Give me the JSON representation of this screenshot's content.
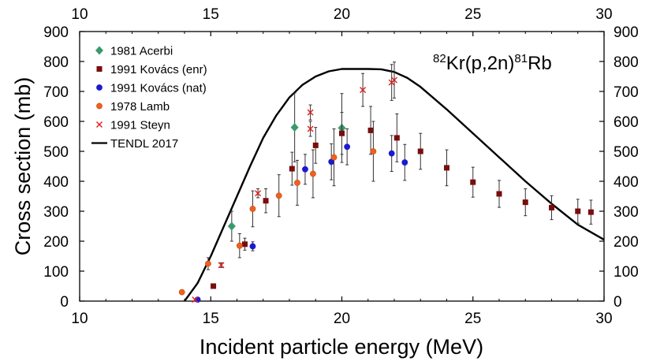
{
  "chart_data": {
    "type": "scatter",
    "title": "",
    "reaction": {
      "pre": "82",
      "main1": "Kr(p,2n)",
      "sup2": "81",
      "main2": "Rb"
    },
    "xlabel": "Incident particle energy (MeV)",
    "ylabel": "Cross section (mb)",
    "xlim": [
      10,
      30
    ],
    "ylim": [
      0,
      900
    ],
    "xticks": [
      10,
      15,
      20,
      25,
      30
    ],
    "yticks": [
      0,
      100,
      200,
      300,
      400,
      500,
      600,
      700,
      800,
      900
    ],
    "xtick_labels": [
      "10",
      "15",
      "20",
      "25",
      "30"
    ],
    "ytick_labels": [
      "0",
      "100",
      "200",
      "300",
      "400",
      "500",
      "600",
      "700",
      "800",
      "900"
    ],
    "grid": false,
    "legend_position": "top-left",
    "series": [
      {
        "name": "1981 Acerbi",
        "marker": "diamond",
        "color": "#3a9a6a",
        "points": [
          {
            "x": 15.8,
            "y": 250,
            "err": 50
          },
          {
            "x": 18.2,
            "y": 580,
            "err": 115
          },
          {
            "x": 20.0,
            "y": 578,
            "err": 115
          }
        ]
      },
      {
        "name": "1991 Kovács (enr)",
        "marker": "square",
        "color": "#7a0d0d",
        "points": [
          {
            "x": 15.1,
            "y": 50,
            "err": 0
          },
          {
            "x": 16.3,
            "y": 190,
            "err": 20
          },
          {
            "x": 17.1,
            "y": 335,
            "err": 40
          },
          {
            "x": 18.1,
            "y": 442,
            "err": 55
          },
          {
            "x": 19.0,
            "y": 520,
            "err": 60
          },
          {
            "x": 20.0,
            "y": 560,
            "err": 70
          },
          {
            "x": 21.1,
            "y": 570,
            "err": 80
          },
          {
            "x": 22.1,
            "y": 545,
            "err": 80
          },
          {
            "x": 23.0,
            "y": 500,
            "err": 60
          },
          {
            "x": 24.0,
            "y": 445,
            "err": 60
          },
          {
            "x": 25.0,
            "y": 397,
            "err": 50
          },
          {
            "x": 26.0,
            "y": 358,
            "err": 45
          },
          {
            "x": 27.0,
            "y": 330,
            "err": 45
          },
          {
            "x": 28.0,
            "y": 312,
            "err": 40
          },
          {
            "x": 29.0,
            "y": 300,
            "err": 40
          },
          {
            "x": 29.5,
            "y": 297,
            "err": 40
          }
        ]
      },
      {
        "name": "1991 Kovács (nat)",
        "marker": "circle",
        "color": "#1a1ad0",
        "points": [
          {
            "x": 14.5,
            "y": 5,
            "err": 0
          },
          {
            "x": 16.6,
            "y": 183,
            "err": 15
          },
          {
            "x": 18.6,
            "y": 440,
            "err": 50
          },
          {
            "x": 19.6,
            "y": 465,
            "err": 60
          },
          {
            "x": 20.2,
            "y": 515,
            "err": 60
          },
          {
            "x": 21.9,
            "y": 493,
            "err": 60
          },
          {
            "x": 22.4,
            "y": 463,
            "err": 60
          }
        ]
      },
      {
        "name": "1978 Lamb",
        "marker": "circle",
        "color": "#f06020",
        "points": [
          {
            "x": 13.9,
            "y": 30,
            "err": 0
          },
          {
            "x": 14.9,
            "y": 125,
            "err": 20
          },
          {
            "x": 16.1,
            "y": 185,
            "err": 40
          },
          {
            "x": 16.6,
            "y": 308,
            "err": 60
          },
          {
            "x": 17.6,
            "y": 352,
            "err": 70
          },
          {
            "x": 18.3,
            "y": 395,
            "err": 75
          },
          {
            "x": 18.9,
            "y": 425,
            "err": 80
          },
          {
            "x": 19.7,
            "y": 480,
            "err": 95
          },
          {
            "x": 21.2,
            "y": 500,
            "err": 100
          }
        ]
      },
      {
        "name": "1991 Steyn",
        "marker": "x",
        "color": "#e02020",
        "points": [
          {
            "x": 14.4,
            "y": 5,
            "err": 0
          },
          {
            "x": 15.4,
            "y": 120,
            "err": 8
          },
          {
            "x": 16.8,
            "y": 360,
            "err": 15
          },
          {
            "x": 18.8,
            "y": 575,
            "err": 25
          },
          {
            "x": 18.8,
            "y": 630,
            "err": 25
          },
          {
            "x": 20.8,
            "y": 705,
            "err": 55
          },
          {
            "x": 21.9,
            "y": 730,
            "err": 60
          },
          {
            "x": 22.0,
            "y": 738,
            "err": 60
          }
        ]
      },
      {
        "name": "TENDL 2017",
        "type": "line",
        "color": "#000000",
        "points": [
          {
            "x": 14.0,
            "y": 0
          },
          {
            "x": 14.5,
            "y": 60
          },
          {
            "x": 15.0,
            "y": 150
          },
          {
            "x": 15.5,
            "y": 250
          },
          {
            "x": 16.0,
            "y": 350
          },
          {
            "x": 16.5,
            "y": 450
          },
          {
            "x": 17.0,
            "y": 545
          },
          {
            "x": 17.5,
            "y": 620
          },
          {
            "x": 18.0,
            "y": 680
          },
          {
            "x": 18.5,
            "y": 722
          },
          {
            "x": 19.0,
            "y": 750
          },
          {
            "x": 19.5,
            "y": 767
          },
          {
            "x": 20.0,
            "y": 775
          },
          {
            "x": 21.0,
            "y": 775
          },
          {
            "x": 21.5,
            "y": 774
          },
          {
            "x": 22.0,
            "y": 765
          },
          {
            "x": 22.5,
            "y": 745
          },
          {
            "x": 23.0,
            "y": 715
          },
          {
            "x": 24.0,
            "y": 640
          },
          {
            "x": 25.0,
            "y": 560
          },
          {
            "x": 26.0,
            "y": 480
          },
          {
            "x": 27.0,
            "y": 400
          },
          {
            "x": 28.0,
            "y": 325
          },
          {
            "x": 29.0,
            "y": 255
          },
          {
            "x": 30.0,
            "y": 205
          }
        ]
      }
    ]
  }
}
